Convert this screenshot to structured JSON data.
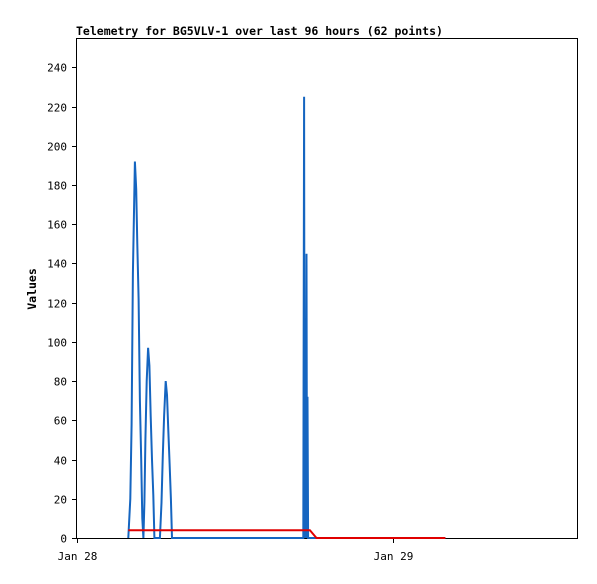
{
  "chart_data": {
    "type": "line",
    "title": "Telemetry for BG5VLV-1 over last 96 hours (62 points)",
    "xlabel": "",
    "ylabel": "Values",
    "xlim": [
      "Jan 28 00:00",
      "Jan 29 14:00"
    ],
    "ylim": [
      0,
      255
    ],
    "yticks": [
      0,
      20,
      40,
      60,
      80,
      100,
      120,
      140,
      160,
      180,
      200,
      220,
      240
    ],
    "xticks": [
      {
        "label": "Jan 28",
        "hour": 0
      },
      {
        "label": "Jan 29",
        "hour": 24
      }
    ],
    "grid": false,
    "legend": "none",
    "series": [
      {
        "color": "#1565c0",
        "points": [
          [
            3.9,
            0
          ],
          [
            4.05,
            20
          ],
          [
            4.15,
            58
          ],
          [
            4.25,
            135
          ],
          [
            4.35,
            172
          ],
          [
            4.4,
            192
          ],
          [
            4.5,
            178
          ],
          [
            4.58,
            150
          ],
          [
            4.68,
            122
          ],
          [
            4.78,
            70
          ],
          [
            4.88,
            40
          ],
          [
            4.96,
            10
          ],
          [
            5.05,
            0
          ],
          [
            5.12,
            18
          ],
          [
            5.2,
            50
          ],
          [
            5.3,
            80
          ],
          [
            5.4,
            97
          ],
          [
            5.5,
            88
          ],
          [
            5.6,
            62
          ],
          [
            5.7,
            40
          ],
          [
            5.8,
            22
          ],
          [
            5.88,
            0
          ],
          [
            6.3,
            0
          ],
          [
            6.42,
            18
          ],
          [
            6.52,
            42
          ],
          [
            6.62,
            62
          ],
          [
            6.74,
            80
          ],
          [
            6.84,
            73
          ],
          [
            6.94,
            55
          ],
          [
            7.04,
            38
          ],
          [
            7.14,
            20
          ],
          [
            7.22,
            0
          ],
          [
            17.2,
            0
          ],
          [
            17.26,
            225
          ],
          [
            17.3,
            0
          ],
          [
            17.36,
            112
          ],
          [
            17.4,
            0
          ],
          [
            17.44,
            145
          ],
          [
            17.48,
            0
          ],
          [
            17.52,
            72
          ],
          [
            17.56,
            0
          ],
          [
            28.0,
            0
          ]
        ]
      },
      {
        "color": "#e00000",
        "points": [
          [
            3.9,
            4
          ],
          [
            17.7,
            4
          ],
          [
            18.2,
            0
          ],
          [
            28.0,
            0
          ]
        ]
      }
    ]
  }
}
